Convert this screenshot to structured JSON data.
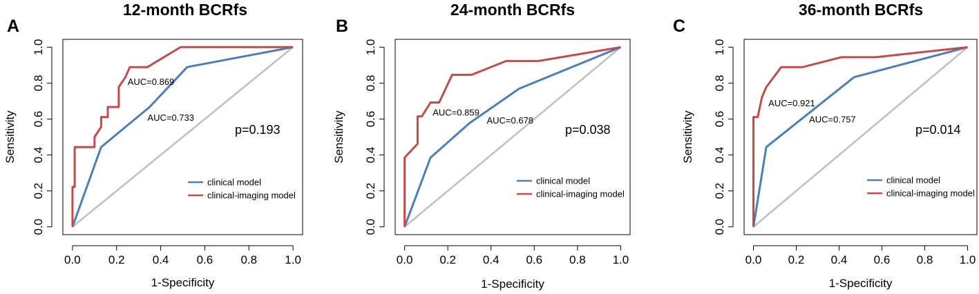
{
  "chart_data": [
    {
      "type": "line",
      "panel_letter": "A",
      "title": "12-month BCRfs",
      "xlabel": "1-Specificity",
      "ylabel": "Sensitivity",
      "xlim": [
        0,
        1
      ],
      "ylim": [
        0,
        1
      ],
      "xticks": [
        "0.0",
        "0.2",
        "0.4",
        "0.6",
        "0.8",
        "1.0"
      ],
      "yticks": [
        "0.0",
        "0.2",
        "0.4",
        "0.6",
        "0.8",
        "1.0"
      ],
      "p_value": "p=0.193",
      "series": [
        {
          "name": "clinical model",
          "color": "#4a7eb5",
          "x": [
            0,
            0.13,
            0.35,
            0.52,
            1.0
          ],
          "y": [
            0,
            0.444,
            0.667,
            0.889,
            1.0
          ]
        },
        {
          "name": "clinical-imaging model",
          "color": "#c44a4a",
          "x": [
            0,
            0,
            0.01,
            0.01,
            0.1,
            0.1,
            0.13,
            0.13,
            0.16,
            0.16,
            0.21,
            0.21,
            0.24,
            0.26,
            0.34,
            0.49,
            1.0
          ],
          "y": [
            0,
            0.222,
            0.222,
            0.444,
            0.444,
            0.5,
            0.556,
            0.611,
            0.611,
            0.667,
            0.667,
            0.778,
            0.833,
            0.889,
            0.889,
            1.0,
            1.0
          ]
        },
        {
          "name": "diagonal",
          "color": "#c0c0c0",
          "x": [
            0,
            1
          ],
          "y": [
            0,
            1
          ]
        }
      ],
      "annotations": [
        {
          "text": "AUC=0.869",
          "x": 0.25,
          "y": 0.79
        },
        {
          "text": "AUC=0.733",
          "x": 0.34,
          "y": 0.59
        }
      ]
    },
    {
      "type": "line",
      "panel_letter": "B",
      "title": "24-month BCRfs",
      "xlabel": "1-Specificity",
      "ylabel": "Sensitivity",
      "xlim": [
        0,
        1
      ],
      "ylim": [
        0,
        1
      ],
      "xticks": [
        "0.0",
        "0.2",
        "0.4",
        "0.6",
        "0.8",
        "1.0"
      ],
      "yticks": [
        "0.0",
        "0.2",
        "0.4",
        "0.6",
        "0.8",
        "1.0"
      ],
      "p_value": "p=0.038",
      "series": [
        {
          "name": "clinical model",
          "color": "#4a7eb5",
          "x": [
            0,
            0.12,
            0.3,
            0.53,
            1.0
          ],
          "y": [
            0,
            0.385,
            0.577,
            0.769,
            1.0
          ]
        },
        {
          "name": "clinical-imaging model",
          "color": "#c44a4a",
          "x": [
            0,
            0,
            0.06,
            0.06,
            0.08,
            0.12,
            0.12,
            0.16,
            0.22,
            0.31,
            0.47,
            0.62,
            1.0
          ],
          "y": [
            0,
            0.385,
            0.462,
            0.615,
            0.615,
            0.692,
            0.692,
            0.692,
            0.846,
            0.846,
            0.923,
            0.923,
            1.0
          ]
        },
        {
          "name": "diagonal",
          "color": "#c0c0c0",
          "x": [
            0,
            1
          ],
          "y": [
            0,
            1
          ]
        }
      ],
      "annotations": [
        {
          "text": "AUC=0.859",
          "x": 0.13,
          "y": 0.62
        },
        {
          "text": "AUC=0.678",
          "x": 0.38,
          "y": 0.575
        }
      ]
    },
    {
      "type": "line",
      "panel_letter": "C",
      "title": "36-month BCRfs",
      "xlabel": "1-Specificity",
      "ylabel": "Sensitivity",
      "xlim": [
        0,
        1
      ],
      "ylim": [
        0,
        1
      ],
      "xticks": [
        "0.0",
        "0.2",
        "0.4",
        "0.6",
        "0.8",
        "1.0"
      ],
      "yticks": [
        "0.0",
        "0.2",
        "0.4",
        "0.6",
        "0.8",
        "1.0"
      ],
      "p_value": "p=0.014",
      "series": [
        {
          "name": "clinical model",
          "color": "#4a7eb5",
          "x": [
            0,
            0.06,
            0.47,
            1.0
          ],
          "y": [
            0,
            0.444,
            0.833,
            1.0
          ]
        },
        {
          "name": "clinical-imaging model",
          "color": "#c44a4a",
          "x": [
            0,
            0,
            0.02,
            0.03,
            0.04,
            0.06,
            0.13,
            0.23,
            0.41,
            0.57,
            1.0
          ],
          "y": [
            0,
            0.611,
            0.611,
            0.667,
            0.722,
            0.778,
            0.889,
            0.889,
            0.944,
            0.944,
            1.0
          ]
        },
        {
          "name": "diagonal",
          "color": "#c0c0c0",
          "x": [
            0,
            1
          ],
          "y": [
            0,
            1
          ]
        }
      ],
      "annotations": [
        {
          "text": "AUC=0.921",
          "x": 0.07,
          "y": 0.67
        },
        {
          "text": "AUC=0.757",
          "x": 0.26,
          "y": 0.58
        }
      ]
    }
  ]
}
